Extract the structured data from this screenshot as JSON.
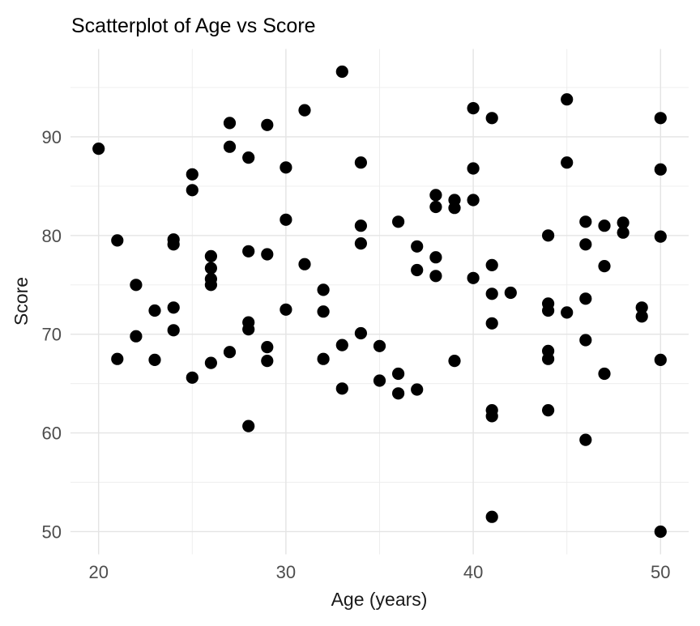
{
  "page": {
    "background": "#FFFFFF"
  },
  "chart_data": {
    "type": "scatter",
    "title": "Scatterplot of Age vs Score",
    "xlabel": "Age (years)",
    "ylabel": "Score",
    "x_ticks": [
      20,
      30,
      40,
      50
    ],
    "x_minor_ticks": [
      25,
      35,
      45
    ],
    "y_ticks": [
      50,
      60,
      70,
      80,
      90
    ],
    "y_minor_ticks": [
      55,
      65,
      75,
      85,
      95
    ],
    "xlim": [
      18.5,
      51.5
    ],
    "ylim": [
      47.7,
      98.9
    ],
    "grid": "major+minor",
    "legend": "none",
    "point_color": "#000000",
    "point_radius": 7.6,
    "grid_major_color": "#E4E4E4",
    "grid_minor_color": "#ECECEC",
    "tick_label_color": "#4D4D4D",
    "title_color": "#000000",
    "axis_label_color": "#1A1A1A",
    "points": [
      [
        20,
        88.8
      ],
      [
        21,
        79.5
      ],
      [
        21,
        67.5
      ],
      [
        22,
        75.0
      ],
      [
        22,
        69.8
      ],
      [
        23,
        72.4
      ],
      [
        23,
        67.4
      ],
      [
        24,
        79.6
      ],
      [
        24,
        79.1
      ],
      [
        24,
        72.7
      ],
      [
        24,
        70.4
      ],
      [
        25,
        86.2
      ],
      [
        25,
        84.6
      ],
      [
        25,
        65.6
      ],
      [
        26,
        77.9
      ],
      [
        26,
        76.7
      ],
      [
        26,
        75.6
      ],
      [
        26,
        75.0
      ],
      [
        26,
        67.1
      ],
      [
        27,
        91.4
      ],
      [
        27,
        89.0
      ],
      [
        27,
        68.2
      ],
      [
        28,
        87.9
      ],
      [
        28,
        78.4
      ],
      [
        28,
        71.2
      ],
      [
        28,
        70.5
      ],
      [
        28,
        60.7
      ],
      [
        29,
        91.2
      ],
      [
        29,
        78.1
      ],
      [
        29,
        68.7
      ],
      [
        29,
        67.3
      ],
      [
        30,
        86.9
      ],
      [
        30,
        81.6
      ],
      [
        30,
        72.5
      ],
      [
        31,
        92.7
      ],
      [
        31,
        77.1
      ],
      [
        32,
        74.5
      ],
      [
        32,
        72.3
      ],
      [
        32,
        67.5
      ],
      [
        33,
        96.6
      ],
      [
        33,
        68.9
      ],
      [
        33,
        64.5
      ],
      [
        34,
        87.4
      ],
      [
        34,
        81.0
      ],
      [
        34,
        79.2
      ],
      [
        34,
        70.1
      ],
      [
        35,
        68.8
      ],
      [
        35,
        65.3
      ],
      [
        36,
        81.4
      ],
      [
        36,
        66.0
      ],
      [
        36,
        64.0
      ],
      [
        37,
        78.9
      ],
      [
        37,
        76.5
      ],
      [
        37,
        64.4
      ],
      [
        38,
        84.1
      ],
      [
        38,
        82.9
      ],
      [
        38,
        77.8
      ],
      [
        38,
        75.9
      ],
      [
        39,
        83.6
      ],
      [
        39,
        82.8
      ],
      [
        39,
        67.3
      ],
      [
        40,
        92.9
      ],
      [
        40,
        86.8
      ],
      [
        40,
        83.6
      ],
      [
        40,
        75.7
      ],
      [
        41,
        91.9
      ],
      [
        41,
        77.0
      ],
      [
        41,
        74.1
      ],
      [
        41,
        71.1
      ],
      [
        41,
        62.3
      ],
      [
        41,
        61.7
      ],
      [
        41,
        51.5
      ],
      [
        42,
        74.2
      ],
      [
        44,
        80.0
      ],
      [
        44,
        73.1
      ],
      [
        44,
        72.4
      ],
      [
        44,
        68.3
      ],
      [
        44,
        67.5
      ],
      [
        44,
        62.3
      ],
      [
        45,
        93.8
      ],
      [
        45,
        87.4
      ],
      [
        45,
        72.2
      ],
      [
        46,
        81.4
      ],
      [
        46,
        79.1
      ],
      [
        46,
        73.6
      ],
      [
        46,
        69.4
      ],
      [
        46,
        59.3
      ],
      [
        47,
        81.0
      ],
      [
        47,
        76.9
      ],
      [
        47,
        66.0
      ],
      [
        48,
        81.3
      ],
      [
        48,
        80.3
      ],
      [
        49,
        72.7
      ],
      [
        49,
        71.8
      ],
      [
        50,
        91.9
      ],
      [
        50,
        86.7
      ],
      [
        50,
        79.9
      ],
      [
        50,
        67.4
      ],
      [
        50,
        50.0
      ]
    ]
  }
}
